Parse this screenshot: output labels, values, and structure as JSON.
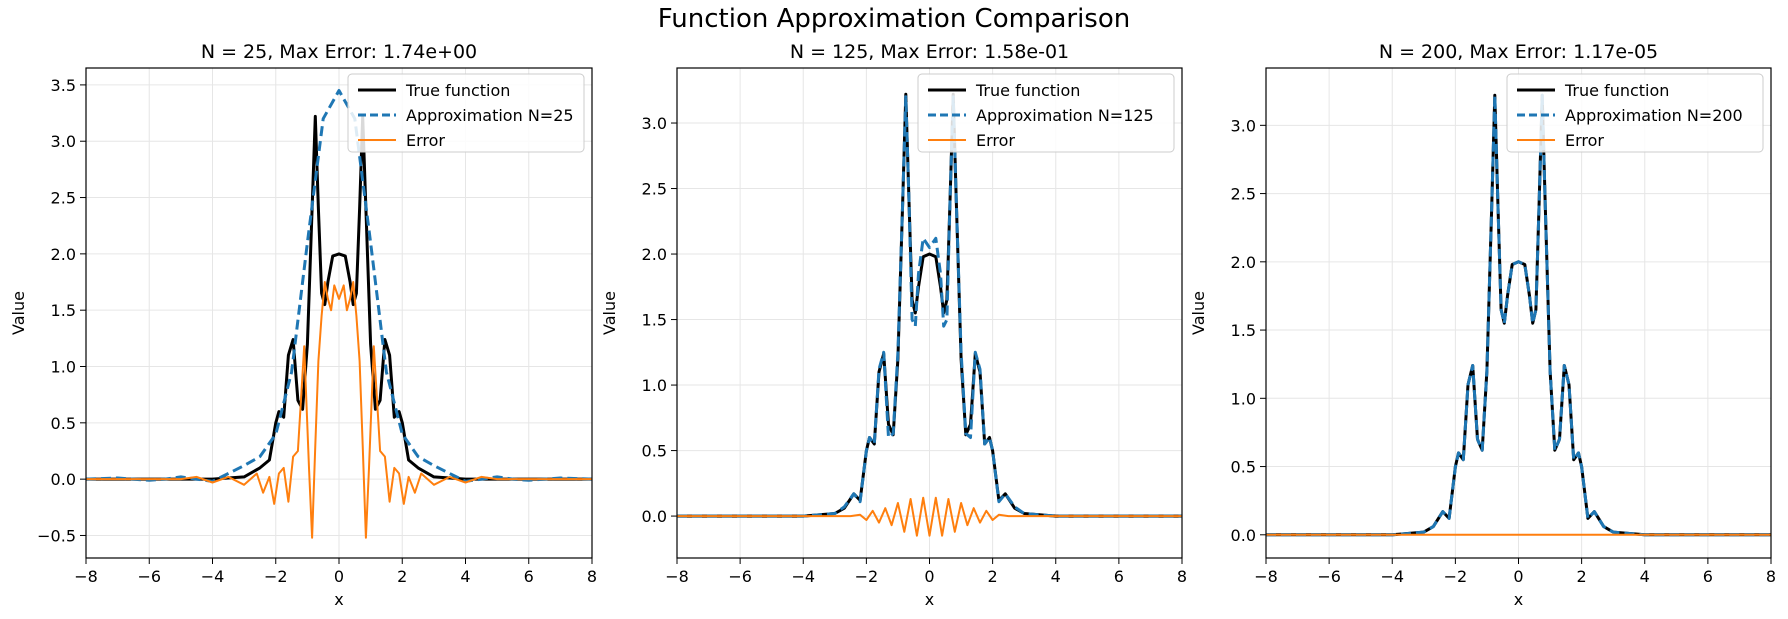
{
  "figure": {
    "title": "Function Approximation Comparison"
  },
  "colors": {
    "true": "#000000",
    "approx": "#1f77b4",
    "error": "#ff7f0e",
    "grid": "#e6e6e6"
  },
  "chart_data": [
    {
      "type": "line",
      "title": "N = 25, Max Error: 1.74e+00",
      "xlabel": "x",
      "ylabel": "Value",
      "xlim": [
        -8,
        8
      ],
      "ylim": [
        -0.7,
        3.65
      ],
      "xticks": [
        -8,
        -6,
        -4,
        -2,
        0,
        2,
        4,
        6,
        8
      ],
      "xtick_labels": [
        "−8",
        "−6",
        "−4",
        "−2",
        "0",
        "2",
        "4",
        "6",
        "8"
      ],
      "yticks": [
        -0.5,
        0.0,
        0.5,
        1.0,
        1.5,
        2.0,
        2.5,
        3.0,
        3.5
      ],
      "ytick_labels": [
        "−0.5",
        "0.0",
        "0.5",
        "1.0",
        "1.5",
        "2.0",
        "2.5",
        "3.0",
        "3.5"
      ],
      "grid": true,
      "legend_position": "top-right",
      "series": [
        {
          "name": "True function",
          "style": "solid",
          "color": "#000000",
          "x": [
            -8,
            -4,
            -3,
            -2.5,
            -2.2,
            -2,
            -1.9,
            -1.75,
            -1.6,
            -1.45,
            -1.3,
            -1.15,
            -1.0,
            -0.85,
            -0.75,
            -0.65,
            -0.55,
            -0.45,
            -0.35,
            -0.2,
            0,
            0.2,
            0.35,
            0.45,
            0.55,
            0.65,
            0.75,
            0.85,
            1.0,
            1.15,
            1.3,
            1.45,
            1.6,
            1.75,
            1.9,
            2,
            2.2,
            2.5,
            3,
            4,
            8
          ],
          "y": [
            0,
            0,
            0.02,
            0.1,
            0.17,
            0.5,
            0.6,
            0.55,
            1.1,
            1.24,
            0.7,
            0.62,
            1.2,
            2.4,
            3.22,
            2.4,
            1.65,
            1.55,
            1.75,
            1.98,
            2.0,
            1.98,
            1.75,
            1.55,
            1.65,
            2.4,
            3.22,
            2.4,
            1.2,
            0.62,
            0.7,
            1.24,
            1.1,
            0.55,
            0.6,
            0.5,
            0.17,
            0.1,
            0.02,
            0,
            0
          ]
        },
        {
          "name": "Approximation N=25",
          "style": "dashed",
          "color": "#1f77b4",
          "x": [
            -8,
            -7,
            -6,
            -5.5,
            -5,
            -4.5,
            -4,
            -3.5,
            -3,
            -2.5,
            -2,
            -1.5,
            -1,
            -0.5,
            0,
            0.5,
            1,
            1.5,
            2,
            2.5,
            3,
            3.5,
            4,
            4.5,
            5,
            5.5,
            6,
            7,
            8
          ],
          "y": [
            0,
            0.01,
            -0.01,
            0.0,
            0.02,
            0.0,
            -0.02,
            0.05,
            0.12,
            0.2,
            0.4,
            0.95,
            2.1,
            3.2,
            3.45,
            3.2,
            2.1,
            0.95,
            0.4,
            0.2,
            0.12,
            0.05,
            -0.02,
            0.0,
            0.02,
            0.0,
            -0.01,
            0.01,
            0
          ]
        },
        {
          "name": "Error",
          "style": "solid",
          "color": "#ff7f0e",
          "x": [
            -8,
            -5,
            -4.5,
            -4,
            -3.5,
            -3,
            -2.6,
            -2.4,
            -2.2,
            -2.05,
            -1.9,
            -1.75,
            -1.6,
            -1.45,
            -1.3,
            -1.1,
            -0.95,
            -0.85,
            -0.75,
            -0.65,
            -0.55,
            -0.45,
            -0.35,
            -0.25,
            -0.15,
            0,
            0.15,
            0.25,
            0.35,
            0.45,
            0.55,
            0.65,
            0.75,
            0.85,
            0.95,
            1.1,
            1.3,
            1.45,
            1.6,
            1.75,
            1.9,
            2.05,
            2.2,
            2.4,
            2.6,
            3,
            3.5,
            4,
            4.5,
            5,
            8
          ],
          "y": [
            0,
            0.0,
            0.02,
            -0.03,
            0.02,
            -0.05,
            0.05,
            -0.12,
            0.02,
            -0.22,
            0.05,
            0.1,
            -0.2,
            0.2,
            0.25,
            1.18,
            0.1,
            -0.52,
            0.3,
            1.05,
            1.45,
            1.75,
            1.6,
            1.5,
            1.72,
            1.6,
            1.72,
            1.5,
            1.6,
            1.75,
            1.45,
            1.05,
            0.3,
            -0.52,
            0.1,
            1.18,
            0.25,
            0.2,
            -0.2,
            0.1,
            0.05,
            -0.22,
            0.02,
            -0.12,
            0.05,
            -0.05,
            0.02,
            -0.03,
            0.02,
            0.0,
            0
          ]
        }
      ]
    },
    {
      "type": "line",
      "title": "N = 125, Max Error: 1.58e-01",
      "xlabel": "x",
      "ylabel": "Value",
      "xlim": [
        -8,
        8
      ],
      "ylim": [
        -0.32,
        3.42
      ],
      "xticks": [
        -8,
        -6,
        -4,
        -2,
        0,
        2,
        4,
        6,
        8
      ],
      "xtick_labels": [
        "−8",
        "−6",
        "−4",
        "−2",
        "0",
        "2",
        "4",
        "6",
        "8"
      ],
      "yticks": [
        0.0,
        0.5,
        1.0,
        1.5,
        2.0,
        2.5,
        3.0
      ],
      "ytick_labels": [
        "0.0",
        "0.5",
        "1.0",
        "1.5",
        "2.0",
        "2.5",
        "3.0"
      ],
      "grid": true,
      "legend_position": "top-right",
      "series": [
        {
          "name": "True function",
          "style": "solid",
          "color": "#000000",
          "x": [
            -8,
            -4,
            -3,
            -2.7,
            -2.4,
            -2.2,
            -2,
            -1.9,
            -1.75,
            -1.6,
            -1.45,
            -1.3,
            -1.15,
            -1.0,
            -0.85,
            -0.75,
            -0.65,
            -0.55,
            -0.45,
            -0.35,
            -0.2,
            0,
            0.2,
            0.35,
            0.45,
            0.55,
            0.65,
            0.75,
            0.85,
            1.0,
            1.15,
            1.3,
            1.45,
            1.6,
            1.75,
            1.9,
            2,
            2.2,
            2.4,
            2.7,
            3,
            4,
            8
          ],
          "y": [
            0,
            0,
            0.02,
            0.06,
            0.17,
            0.12,
            0.5,
            0.6,
            0.55,
            1.1,
            1.24,
            0.7,
            0.62,
            1.2,
            2.4,
            3.22,
            2.4,
            1.65,
            1.55,
            1.75,
            1.98,
            2.0,
            1.98,
            1.75,
            1.55,
            1.65,
            2.4,
            3.22,
            2.4,
            1.2,
            0.62,
            0.7,
            1.24,
            1.1,
            0.55,
            0.6,
            0.5,
            0.12,
            0.17,
            0.06,
            0.02,
            0,
            0
          ]
        },
        {
          "name": "Approximation N=125",
          "style": "dashed",
          "color": "#1f77b4",
          "x": [
            -8,
            -4,
            -3,
            -2.7,
            -2.4,
            -2.2,
            -2,
            -1.9,
            -1.75,
            -1.6,
            -1.45,
            -1.3,
            -1.15,
            -1.0,
            -0.85,
            -0.75,
            -0.65,
            -0.55,
            -0.45,
            -0.35,
            -0.2,
            0,
            0.2,
            0.35,
            0.45,
            0.55,
            0.65,
            0.75,
            0.85,
            1.0,
            1.15,
            1.3,
            1.45,
            1.6,
            1.75,
            1.9,
            2,
            2.2,
            2.4,
            2.7,
            3,
            4,
            8
          ],
          "y": [
            0,
            0,
            0.02,
            0.07,
            0.17,
            0.11,
            0.5,
            0.6,
            0.55,
            1.12,
            1.25,
            0.6,
            0.63,
            1.25,
            2.4,
            3.2,
            2.4,
            1.5,
            1.45,
            1.85,
            2.12,
            2.05,
            2.12,
            1.85,
            1.45,
            1.5,
            2.4,
            3.2,
            2.4,
            1.25,
            0.63,
            0.6,
            1.25,
            1.12,
            0.55,
            0.6,
            0.5,
            0.11,
            0.17,
            0.07,
            0.02,
            0,
            0
          ]
        },
        {
          "name": "Error",
          "style": "solid",
          "color": "#ff7f0e",
          "x": [
            -8,
            -2.5,
            -2.2,
            -2.0,
            -1.8,
            -1.6,
            -1.4,
            -1.2,
            -1.0,
            -0.8,
            -0.6,
            -0.4,
            -0.2,
            0,
            0.2,
            0.4,
            0.6,
            0.8,
            1.0,
            1.2,
            1.4,
            1.6,
            1.8,
            2.0,
            2.2,
            2.5,
            8
          ],
          "y": [
            0,
            0,
            0.01,
            -0.03,
            0.04,
            -0.05,
            0.06,
            -0.07,
            0.1,
            -0.12,
            0.13,
            -0.15,
            0.14,
            -0.15,
            0.14,
            -0.15,
            0.13,
            -0.12,
            0.1,
            -0.07,
            0.06,
            -0.05,
            0.04,
            -0.03,
            0.01,
            0,
            0
          ]
        }
      ]
    },
    {
      "type": "line",
      "title": "N = 200, Max Error: 1.17e-05",
      "xlabel": "x",
      "ylabel": "Value",
      "xlim": [
        -8,
        8
      ],
      "ylim": [
        -0.17,
        3.42
      ],
      "xticks": [
        -8,
        -6,
        -4,
        -2,
        0,
        2,
        4,
        6,
        8
      ],
      "xtick_labels": [
        "−8",
        "−6",
        "−4",
        "−2",
        "0",
        "2",
        "4",
        "6",
        "8"
      ],
      "yticks": [
        0.0,
        0.5,
        1.0,
        1.5,
        2.0,
        2.5,
        3.0
      ],
      "ytick_labels": [
        "0.0",
        "0.5",
        "1.0",
        "1.5",
        "2.0",
        "2.5",
        "3.0"
      ],
      "grid": true,
      "legend_position": "top-right",
      "series": [
        {
          "name": "True function",
          "style": "solid",
          "color": "#000000",
          "x": [
            -8,
            -4,
            -3,
            -2.7,
            -2.4,
            -2.2,
            -2,
            -1.9,
            -1.75,
            -1.6,
            -1.45,
            -1.3,
            -1.15,
            -1.0,
            -0.85,
            -0.75,
            -0.65,
            -0.55,
            -0.45,
            -0.35,
            -0.2,
            0,
            0.2,
            0.35,
            0.45,
            0.55,
            0.65,
            0.75,
            0.85,
            1.0,
            1.15,
            1.3,
            1.45,
            1.6,
            1.75,
            1.9,
            2,
            2.2,
            2.4,
            2.7,
            3,
            4,
            8
          ],
          "y": [
            0,
            0,
            0.02,
            0.06,
            0.17,
            0.12,
            0.5,
            0.6,
            0.55,
            1.1,
            1.24,
            0.7,
            0.62,
            1.2,
            2.4,
            3.22,
            2.4,
            1.65,
            1.55,
            1.75,
            1.98,
            2.0,
            1.98,
            1.75,
            1.55,
            1.65,
            2.4,
            3.22,
            2.4,
            1.2,
            0.62,
            0.7,
            1.24,
            1.1,
            0.55,
            0.6,
            0.5,
            0.12,
            0.17,
            0.06,
            0.02,
            0,
            0
          ]
        },
        {
          "name": "Approximation N=200",
          "style": "dashed",
          "color": "#1f77b4",
          "x": [
            -8,
            -4,
            -3,
            -2.7,
            -2.4,
            -2.2,
            -2,
            -1.9,
            -1.75,
            -1.6,
            -1.45,
            -1.3,
            -1.15,
            -1.0,
            -0.85,
            -0.75,
            -0.65,
            -0.55,
            -0.45,
            -0.35,
            -0.2,
            0,
            0.2,
            0.35,
            0.45,
            0.55,
            0.65,
            0.75,
            0.85,
            1.0,
            1.15,
            1.3,
            1.45,
            1.6,
            1.75,
            1.9,
            2,
            2.2,
            2.4,
            2.7,
            3,
            4,
            8
          ],
          "y": [
            0,
            0,
            0.02,
            0.06,
            0.17,
            0.12,
            0.5,
            0.6,
            0.55,
            1.1,
            1.24,
            0.7,
            0.62,
            1.2,
            2.4,
            3.22,
            2.4,
            1.65,
            1.55,
            1.75,
            1.98,
            2.0,
            1.98,
            1.75,
            1.55,
            1.65,
            2.4,
            3.22,
            2.4,
            1.2,
            0.62,
            0.7,
            1.24,
            1.1,
            0.55,
            0.6,
            0.5,
            0.12,
            0.17,
            0.06,
            0.02,
            0,
            0
          ]
        },
        {
          "name": "Error",
          "style": "solid",
          "color": "#ff7f0e",
          "x": [
            -8,
            8
          ],
          "y": [
            0,
            0
          ]
        }
      ]
    }
  ]
}
